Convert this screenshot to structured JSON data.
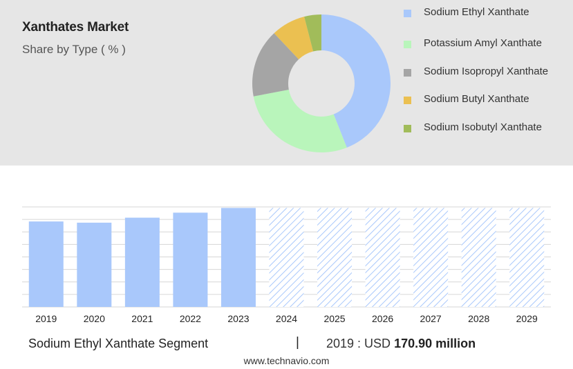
{
  "header": {
    "title": "Xanthates Market",
    "subtitle": "Share by Type ( % )"
  },
  "chart_data": [
    {
      "type": "pie",
      "variant": "donut",
      "title": "Xanthates Market",
      "subtitle": "Share by Type ( % )",
      "legend_position": "right",
      "categories": [
        "Sodium Ethyl Xanthate",
        "Potassium Amyl Xanthate",
        "Sodium Isopropyl Xanthate",
        "Sodium Butyl Xanthate",
        "Sodium Isobutyl Xanthate"
      ],
      "values": [
        44,
        28,
        16,
        8,
        4
      ],
      "colors": [
        "#a9c8fb",
        "#b9f5bb",
        "#a5a5a5",
        "#ebc051",
        "#a1bc5a"
      ]
    },
    {
      "type": "bar",
      "categories": [
        "2019",
        "2020",
        "2021",
        "2022",
        "2023",
        "2024",
        "2025",
        "2026",
        "2027",
        "2028",
        "2029"
      ],
      "values": [
        170.9,
        168.5,
        178.5,
        188.5,
        198,
        null,
        null,
        null,
        null,
        null,
        null
      ],
      "forecast_categories": [
        "2024",
        "2025",
        "2026",
        "2027",
        "2028",
        "2029"
      ],
      "forecast_pattern": "hatched",
      "color": "#a9c8fb",
      "grid": true,
      "ylim": [
        0,
        200
      ]
    }
  ],
  "footer": {
    "segment": "Sodium Ethyl Xanthate Segment",
    "separator": "|",
    "value_prefix": "2019 : USD",
    "value": "170.90 million"
  },
  "website": "www.technavio.com"
}
